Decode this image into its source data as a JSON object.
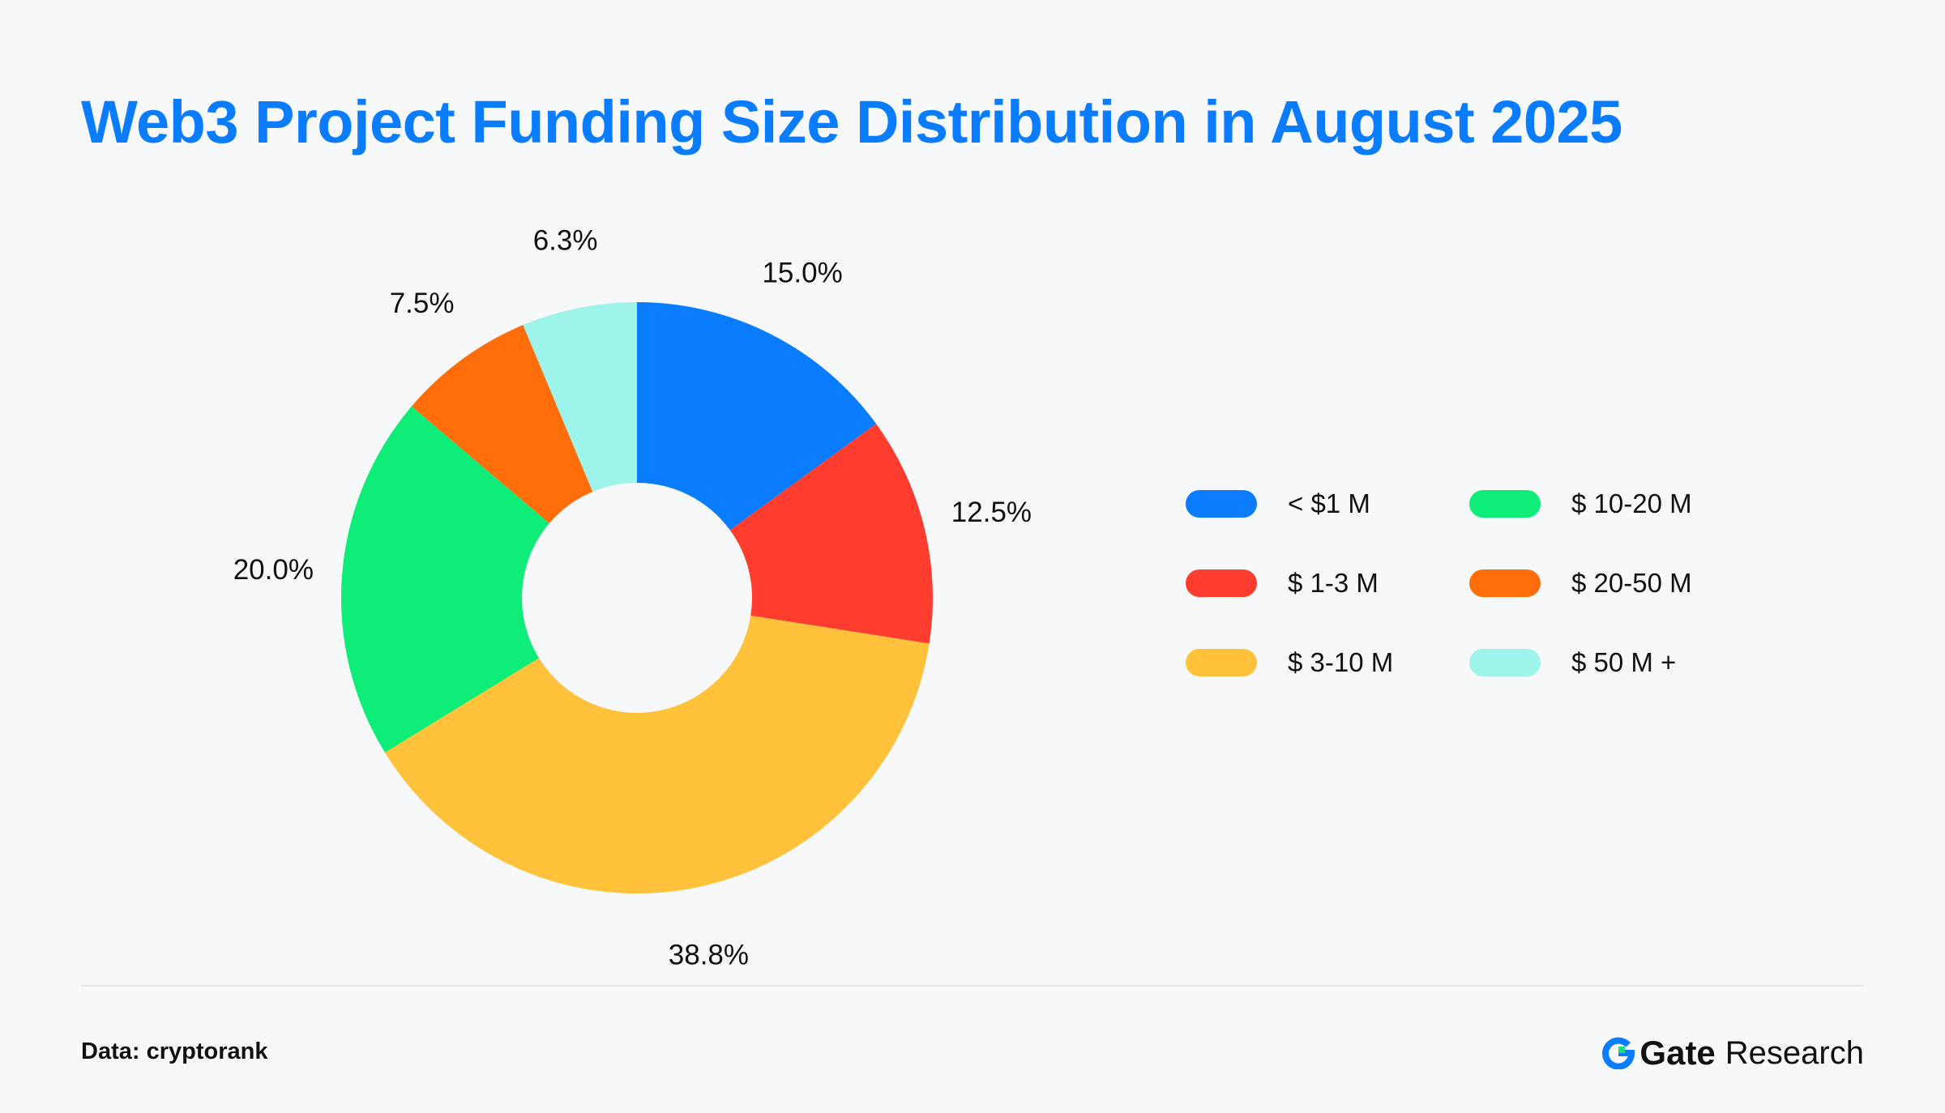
{
  "title": "Web3 Project Funding Size Distribution in August 2025",
  "source": "Data: cryptorank",
  "brand": {
    "name": "Gate",
    "suffix": "Research",
    "logo_colors": [
      "#0a7cff",
      "#17e07a"
    ]
  },
  "chart_data": {
    "type": "pie",
    "style": "donut",
    "title": "Web3 Project Funding Size Distribution in August 2025",
    "legend_position": "right",
    "categories": [
      "< $1 M",
      "$ 1-3 M",
      "$ 3-10 M",
      "$ 10-20 M",
      "$ 20-50 M",
      "$ 50 M +"
    ],
    "values": [
      15.0,
      12.5,
      38.8,
      20.0,
      7.5,
      6.3
    ],
    "value_labels": [
      "15.0%",
      "12.5%",
      "38.8%",
      "20.0%",
      "7.5%",
      "6.3%"
    ],
    "colors": [
      "#0a7cff",
      "#ff3d2e",
      "#ffc23a",
      "#0ded77",
      "#ff6e0a",
      "#9ef3ea"
    ]
  }
}
